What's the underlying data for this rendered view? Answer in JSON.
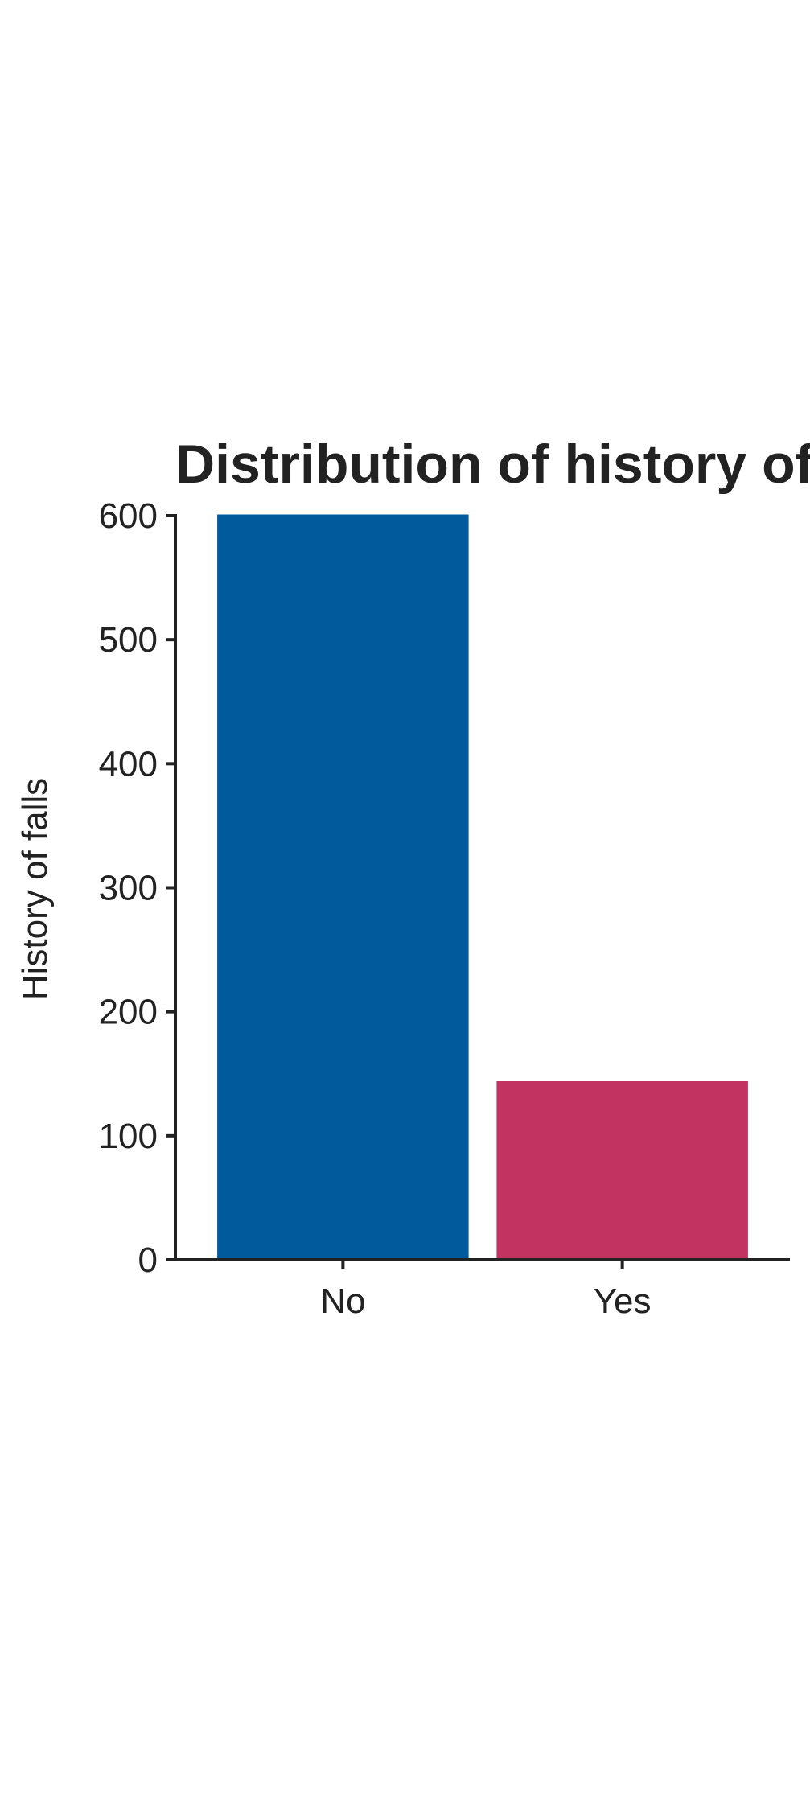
{
  "chart_data": {
    "type": "bar",
    "title": "Distribution of history of falls",
    "xlabel": "",
    "ylabel": "History of falls",
    "categories": [
      "No",
      "Yes"
    ],
    "values": [
      601,
      144
    ],
    "colors": [
      "#005A9C",
      "#C33361"
    ],
    "ylim": [
      0,
      600
    ],
    "yticks": [
      "0",
      "100",
      "200",
      "300",
      "400",
      "500",
      "600"
    ],
    "grid": false,
    "legend": "none"
  }
}
